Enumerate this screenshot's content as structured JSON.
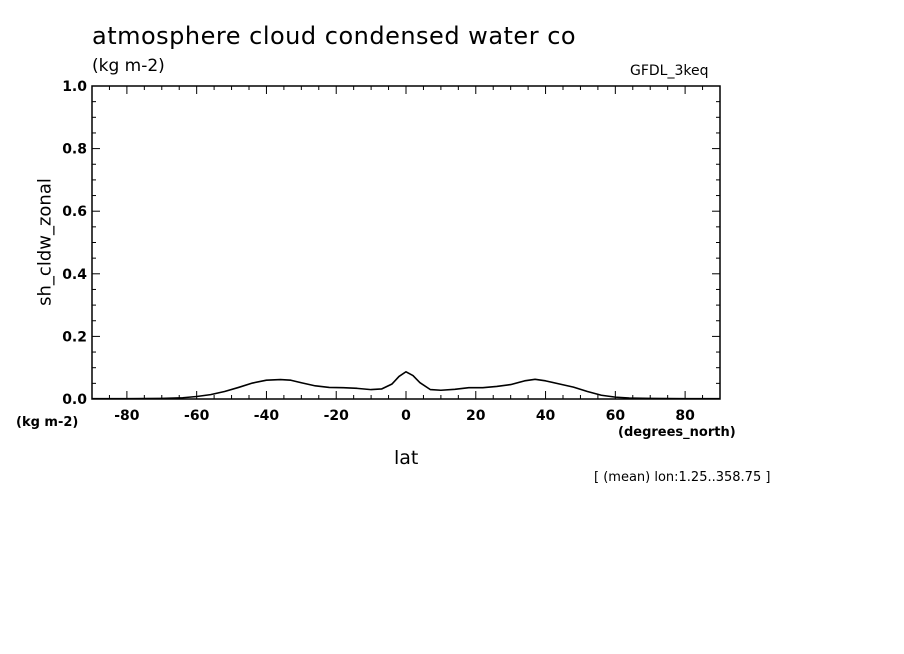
{
  "chart_data": {
    "type": "line",
    "title": "atmosphere cloud condensed water co",
    "units_label": "(kg m-2)",
    "model_label": "GFDL_3keq",
    "xlabel": "lat",
    "ylabel": "sh_cldw_zonal",
    "x_units": "(degrees_north)",
    "y_units": "(kg m-2)",
    "note": "[ (mean) lon:1.25..358.75 ]",
    "xlim": [
      -90,
      90
    ],
    "ylim": [
      0,
      1.0
    ],
    "x_ticks": [
      -80,
      -60,
      -40,
      -20,
      0,
      20,
      40,
      60,
      80
    ],
    "x_tick_labels": [
      "-80",
      "-60",
      "-40",
      "-20",
      "0",
      "20",
      "40",
      "60",
      "80"
    ],
    "y_ticks": [
      0,
      0.2,
      0.4,
      0.6,
      0.8,
      1.0
    ],
    "y_tick_labels": [
      "0.0",
      "0.2",
      "0.4",
      "0.6",
      "0.8",
      "1.0"
    ],
    "series": [
      {
        "name": "sh_cldw_zonal",
        "x": [
          -90,
          -80,
          -70,
          -64,
          -60,
          -56,
          -52,
          -48,
          -44,
          -40,
          -36,
          -33,
          -30,
          -26,
          -22,
          -18,
          -14,
          -10,
          -7,
          -4,
          -2,
          0,
          2,
          4,
          7,
          10,
          14,
          18,
          22,
          26,
          30,
          34,
          37,
          40,
          44,
          48,
          52,
          56,
          60,
          64,
          70,
          80,
          90
        ],
        "values": [
          0.001,
          0.001,
          0.002,
          0.004,
          0.008,
          0.014,
          0.024,
          0.037,
          0.051,
          0.06,
          0.062,
          0.06,
          0.052,
          0.042,
          0.037,
          0.036,
          0.034,
          0.03,
          0.032,
          0.048,
          0.072,
          0.087,
          0.075,
          0.052,
          0.03,
          0.028,
          0.031,
          0.036,
          0.036,
          0.04,
          0.046,
          0.058,
          0.063,
          0.058,
          0.048,
          0.038,
          0.024,
          0.012,
          0.006,
          0.003,
          0.002,
          0.001,
          0.001
        ]
      }
    ]
  }
}
